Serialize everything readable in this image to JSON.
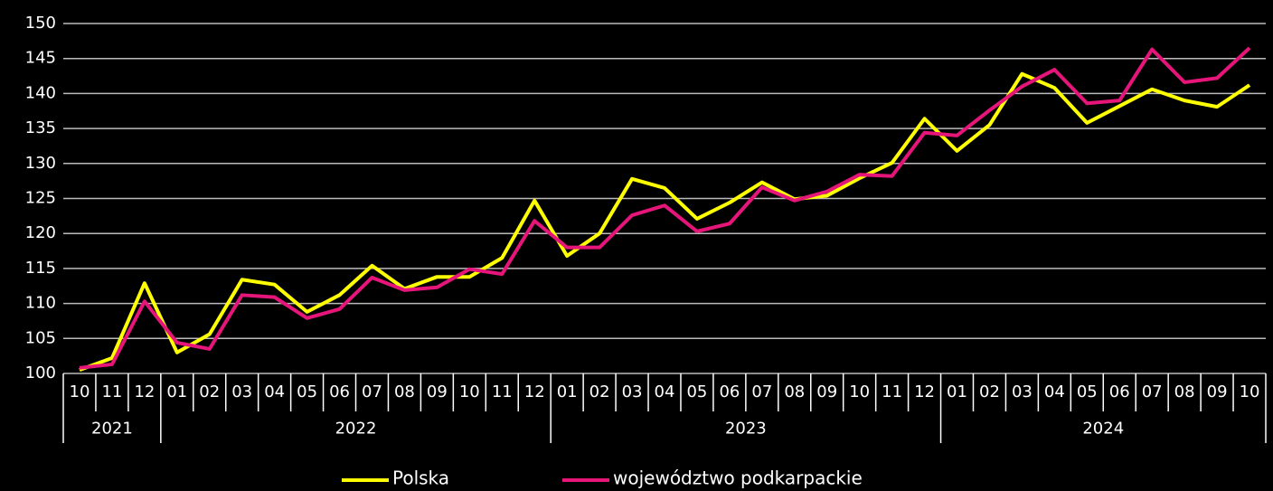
{
  "chart_data": {
    "type": "line",
    "groups": [
      {
        "name": "2021",
        "months": [
          "10",
          "11",
          "12"
        ]
      },
      {
        "name": "2022",
        "months": [
          "01",
          "02",
          "03",
          "04",
          "05",
          "06",
          "07",
          "08",
          "09",
          "10",
          "11",
          "12"
        ]
      },
      {
        "name": "2023",
        "months": [
          "01",
          "02",
          "03",
          "04",
          "05",
          "06",
          "07",
          "08",
          "09",
          "10",
          "11",
          "12"
        ]
      },
      {
        "name": "2024",
        "months": [
          "01",
          "02",
          "03",
          "04",
          "05",
          "06",
          "07",
          "08",
          "09",
          "10"
        ]
      }
    ],
    "series": [
      {
        "name": "Polska",
        "color": "#ffff00",
        "values": [
          100.5,
          102.2,
          112.9,
          103.0,
          105.6,
          113.4,
          112.7,
          108.8,
          111.2,
          115.4,
          112.1,
          113.8,
          113.8,
          116.5,
          124.7,
          116.8,
          120.0,
          127.8,
          126.5,
          122.1,
          124.4,
          127.3,
          124.9,
          125.4,
          127.9,
          130.1,
          136.4,
          131.8,
          135.5,
          142.8,
          140.8,
          135.8,
          138.2,
          140.6,
          139.0,
          138.1,
          141.2
        ]
      },
      {
        "name": "województwo podkarpackie",
        "color": "#e6157a",
        "values": [
          100.8,
          101.3,
          110.3,
          104.4,
          103.5,
          111.2,
          110.9,
          107.9,
          109.2,
          113.7,
          111.9,
          112.3,
          114.9,
          114.2,
          121.8,
          118.0,
          118.0,
          122.6,
          124.0,
          120.3,
          121.4,
          126.6,
          124.7,
          126.0,
          128.4,
          128.2,
          134.4,
          134.0,
          137.6,
          141.0,
          143.4,
          138.6,
          139.0,
          146.3,
          141.6,
          142.2,
          146.5
        ]
      }
    ],
    "ylim": [
      100,
      150
    ],
    "yticks": [
      100,
      105,
      110,
      115,
      120,
      125,
      130,
      135,
      140,
      145,
      150
    ],
    "grid": true
  }
}
